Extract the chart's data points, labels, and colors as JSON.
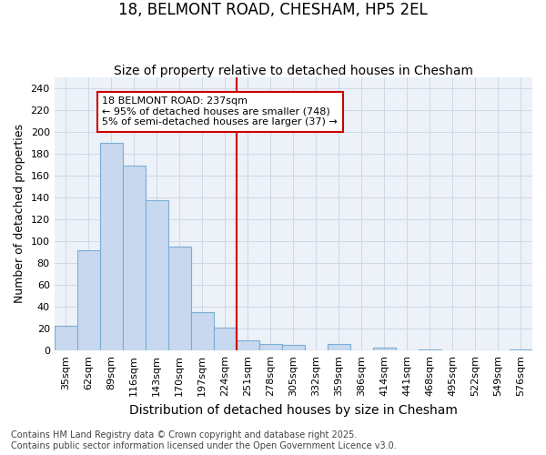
{
  "title": "18, BELMONT ROAD, CHESHAM, HP5 2EL",
  "subtitle": "Size of property relative to detached houses in Chesham",
  "xlabel": "Distribution of detached houses by size in Chesham",
  "ylabel": "Number of detached properties",
  "categories": [
    "35sqm",
    "62sqm",
    "89sqm",
    "116sqm",
    "143sqm",
    "170sqm",
    "197sqm",
    "224sqm",
    "251sqm",
    "278sqm",
    "305sqm",
    "332sqm",
    "359sqm",
    "386sqm",
    "414sqm",
    "441sqm",
    "468sqm",
    "495sqm",
    "522sqm",
    "549sqm",
    "576sqm"
  ],
  "values": [
    23,
    92,
    190,
    169,
    137,
    95,
    35,
    21,
    9,
    6,
    5,
    0,
    6,
    0,
    3,
    0,
    1,
    0,
    0,
    0,
    1
  ],
  "bar_color": "#c8d8ee",
  "bar_edge_color": "#7aadd4",
  "vline_color": "#cc0000",
  "annotation_line1": "18 BELMONT ROAD: 237sqm",
  "annotation_line2": "← 95% of detached houses are smaller (748)",
  "annotation_line3": "5% of semi-detached houses are larger (37) →",
  "annotation_box_edgecolor": "#cc0000",
  "annotation_box_facecolor": "white",
  "footer": "Contains HM Land Registry data © Crown copyright and database right 2025.\nContains public sector information licensed under the Open Government Licence v3.0.",
  "ylim": [
    0,
    250
  ],
  "yticks": [
    0,
    20,
    40,
    60,
    80,
    100,
    120,
    140,
    160,
    180,
    200,
    220,
    240
  ],
  "grid_color": "#d0d8e8",
  "background_color": "#edf1f8",
  "title_fontsize": 12,
  "subtitle_fontsize": 10,
  "xlabel_fontsize": 10,
  "ylabel_fontsize": 9,
  "tick_fontsize": 8,
  "annotation_fontsize": 8,
  "footer_fontsize": 7
}
